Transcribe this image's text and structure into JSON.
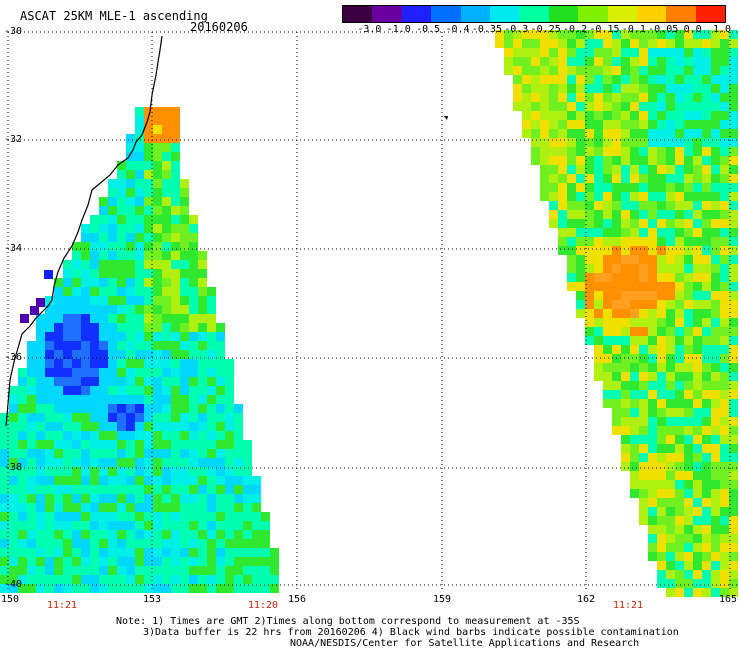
{
  "header": {
    "title": "ASCAT 25KM MLE-1 ascending",
    "date": "20160206"
  },
  "colorbar": {
    "labels": [
      "-3.0",
      "-1.0",
      "-0.5",
      "-0.4",
      "-0.35",
      "-0.3",
      "-0.25",
      "-0.2",
      "-0.15",
      "-0.1",
      "-0.05",
      "0.0",
      "1.0"
    ],
    "colors": [
      "#3a0040",
      "#6a00a0",
      "#2020ff",
      "#0070ff",
      "#00b0ff",
      "#00e8f0",
      "#00ffa0",
      "#20e020",
      "#80f000",
      "#d8f000",
      "#ffd000",
      "#ff8000",
      "#ff2000"
    ]
  },
  "axes": {
    "lat_labels": [
      "-30",
      "-32",
      "-34",
      "-36",
      "-38",
      "-40"
    ],
    "lon_labels": [
      "150",
      "153",
      "156",
      "159",
      "162",
      "165"
    ]
  },
  "times": [
    "11:21",
    "11:20",
    "11:21"
  ],
  "notes": {
    "line1": "Note: 1) Times are GMT 2)Times along bottom correspond to measurement at -35S",
    "line2": "3)Data buffer is 22 hrs from 20160206 4) Black wind barbs indicate possible contamination",
    "line3": "NOAA/NESDIS/Center for Satellite Applications and Research"
  }
}
